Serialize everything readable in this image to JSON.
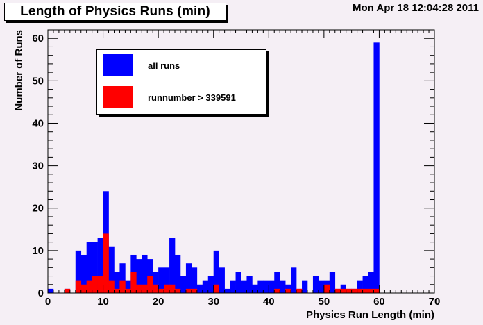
{
  "header": {
    "title": "Length of Physics Runs (min)",
    "timestamp": "Mon Apr 18 12:04:28 2011"
  },
  "legend": {
    "items": [
      {
        "label": "all runs",
        "color": "#0000ff"
      },
      {
        "label": "runnumber > 339591",
        "color": "#ff0000"
      }
    ]
  },
  "chart_data": {
    "type": "bar",
    "title": "Length of Physics Runs (min)",
    "xlabel": "Physics Run Length (min)",
    "ylabel": "Number of Runs",
    "xlim": [
      0,
      70
    ],
    "ylim": [
      0,
      62
    ],
    "bin_width": 1,
    "x_ticks": [
      0,
      10,
      20,
      30,
      40,
      50,
      60,
      70
    ],
    "y_ticks": [
      0,
      10,
      20,
      30,
      40,
      50,
      60
    ],
    "grid": false,
    "legend_position": "top-left",
    "bin_low_edges": [
      0,
      1,
      2,
      3,
      4,
      5,
      6,
      7,
      8,
      9,
      10,
      11,
      12,
      13,
      14,
      15,
      16,
      17,
      18,
      19,
      20,
      21,
      22,
      23,
      24,
      25,
      26,
      27,
      28,
      29,
      30,
      31,
      32,
      33,
      34,
      35,
      36,
      37,
      38,
      39,
      40,
      41,
      42,
      43,
      44,
      45,
      46,
      47,
      48,
      49,
      50,
      51,
      52,
      53,
      54,
      55,
      56,
      57,
      58,
      59,
      60,
      61,
      62,
      63,
      64,
      65,
      66,
      67,
      68,
      69
    ],
    "series": [
      {
        "name": "all runs",
        "color": "#0000ff",
        "values": [
          1,
          0,
          0,
          1,
          0,
          10,
          9,
          12,
          12,
          13,
          24,
          11,
          5,
          7,
          3,
          9,
          8,
          9,
          8,
          5,
          6,
          6,
          13,
          9,
          4,
          7,
          6,
          2,
          3,
          4,
          10,
          6,
          1,
          3,
          5,
          3,
          4,
          2,
          3,
          3,
          3,
          5,
          3,
          2,
          6,
          1,
          3,
          0,
          4,
          3,
          3,
          5,
          1,
          2,
          1,
          1,
          3,
          4,
          5,
          59,
          0,
          0,
          0,
          0,
          0,
          0,
          0,
          0,
          0,
          0
        ]
      },
      {
        "name": "runnumber > 339591",
        "color": "#ff0000",
        "values": [
          0,
          0,
          0,
          1,
          0,
          3,
          2,
          3,
          4,
          4,
          14,
          3,
          1,
          3,
          1,
          5,
          2,
          2,
          4,
          2,
          1,
          2,
          2,
          1,
          0,
          1,
          1,
          0,
          0,
          0,
          2,
          0,
          0,
          0,
          0,
          0,
          0,
          0,
          0,
          0,
          0,
          1,
          0,
          1,
          0,
          1,
          0,
          0,
          0,
          0,
          2,
          0,
          1,
          1,
          1,
          1,
          1,
          1,
          1,
          1,
          0,
          0,
          0,
          0,
          0,
          0,
          0,
          0,
          0,
          0
        ]
      }
    ]
  }
}
